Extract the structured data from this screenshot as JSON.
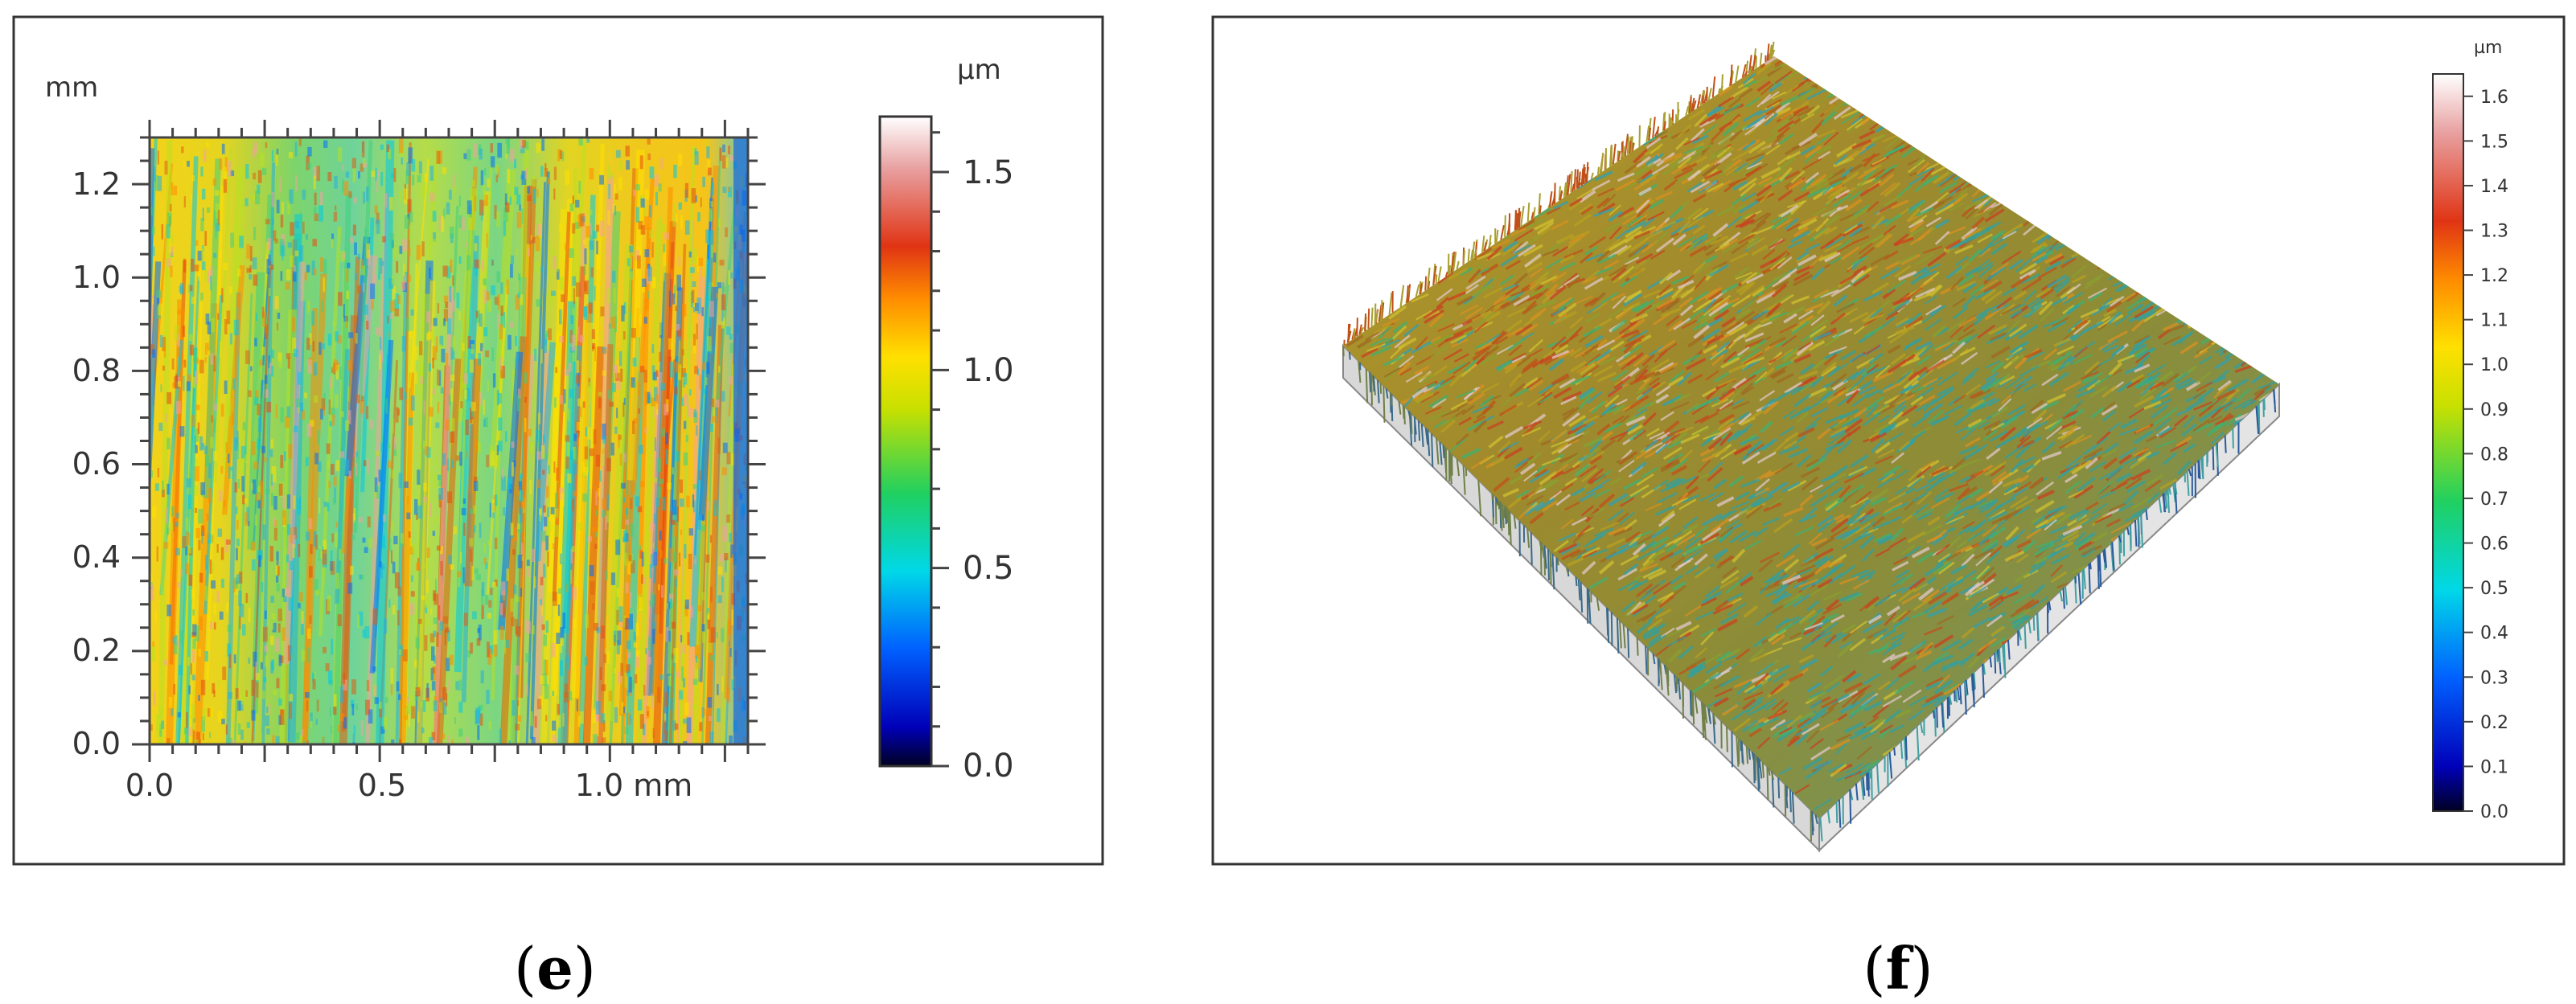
{
  "panel_e": {
    "y_unit": "mm",
    "x_tick_labels": [
      "0.0",
      "0.5",
      "1.0 mm"
    ],
    "y_tick_labels": [
      "0.0",
      "0.2",
      "0.4",
      "0.6",
      "0.8",
      "1.0",
      "1.2"
    ],
    "colorbar_unit": "µm",
    "colorbar_labels": [
      "0.0",
      "0.5",
      "1.0",
      "1.5"
    ],
    "caption_letter": "e"
  },
  "panel_f": {
    "colorbar_unit": "µm",
    "colorbar_labels": [
      "0.0",
      "0.1",
      "0.2",
      "0.3",
      "0.4",
      "0.5",
      "0.6",
      "0.7",
      "0.8",
      "0.9",
      "1.0",
      "1.1",
      "1.2",
      "1.3",
      "1.4",
      "1.5",
      "1.6"
    ],
    "caption_letter": "f"
  },
  "colormap": [
    "#000020",
    "#0000c0",
    "#0060ff",
    "#00d8e8",
    "#20d060",
    "#c8e000",
    "#ffe000",
    "#ff8a00",
    "#e03010",
    "#e8a0a0",
    "#ffffff"
  ]
}
